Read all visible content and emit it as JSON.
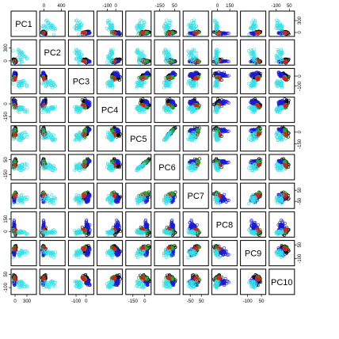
{
  "chart_data": {
    "type": "scatter",
    "title": "",
    "grid": false,
    "variables": [
      "PC1",
      "PC2",
      "PC3",
      "PC4",
      "PC5",
      "PC6",
      "PC7",
      "PC8",
      "PC9",
      "PC10"
    ],
    "groups": [
      {
        "color": "#000000"
      },
      {
        "color": "#1b1bd6"
      },
      {
        "color": "#22b222"
      },
      {
        "color": "#d62020"
      },
      {
        "color": "#33e0e8"
      }
    ],
    "axis_ticks": {
      "top": {
        "PC2": [
          "0",
          "400"
        ],
        "PC4": [
          "-100",
          "0"
        ],
        "PC6": [
          "-150",
          "50"
        ],
        "PC8": [
          "0",
          "150"
        ],
        "PC10": [
          "-100",
          "50"
        ]
      },
      "right": {
        "PC1": [
          "0",
          "300"
        ],
        "PC3": [
          "-100",
          "0"
        ],
        "PC5": [
          "-150",
          "0"
        ],
        "PC7": [
          "-50",
          "50"
        ],
        "PC9": [
          "-100",
          "50"
        ]
      },
      "bottom": {
        "PC1": [
          "0",
          "300"
        ],
        "PC3": [
          "-100",
          "0"
        ],
        "PC5": [
          "-150",
          "0"
        ],
        "PC7": [
          "-50",
          "50"
        ],
        "PC9": [
          "-100",
          "50"
        ]
      },
      "left": {
        "PC2": [
          "0",
          "300"
        ],
        "PC4": [
          "-150",
          "0"
        ],
        "PC6": [
          "-150",
          "50"
        ],
        "PC8": [
          "0",
          "150"
        ],
        "PC10": [
          "-100",
          "50"
        ]
      }
    },
    "ranges": {
      "PC1": [
        -60,
        500
      ],
      "PC2": [
        -60,
        450
      ],
      "PC3": [
        -160,
        60
      ],
      "PC4": [
        -200,
        60
      ],
      "PC5": [
        -220,
        60
      ],
      "PC6": [
        -200,
        100
      ],
      "PC7": [
        -100,
        100
      ],
      "PC8": [
        -50,
        220
      ],
      "PC9": [
        -160,
        80
      ],
      "PC10": [
        -160,
        90
      ]
    }
  }
}
